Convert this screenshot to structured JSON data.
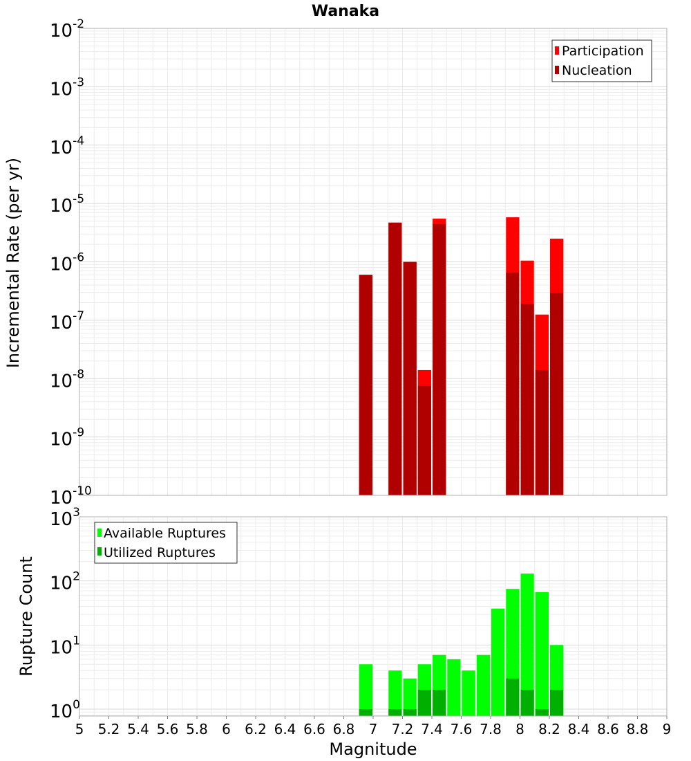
{
  "chart_data": [
    {
      "type": "bar",
      "title": "Wanaka",
      "ylabel": "Incremental Rate (per yr)",
      "xlim": [
        5,
        9
      ],
      "ylim": [
        1e-10,
        0.01
      ],
      "yscale": "log",
      "bin_width": 0.1,
      "grid": true,
      "legend_position": "top-right",
      "ytick_labels": [
        {
          "base": "10",
          "exp": "-10",
          "value": 1e-10
        },
        {
          "base": "10",
          "exp": "-9",
          "value": 1e-09
        },
        {
          "base": "10",
          "exp": "-8",
          "value": 1e-08
        },
        {
          "base": "10",
          "exp": "-7",
          "value": 1e-07
        },
        {
          "base": "10",
          "exp": "-6",
          "value": 1e-06
        },
        {
          "base": "10",
          "exp": "-5",
          "value": 1e-05
        },
        {
          "base": "10",
          "exp": "-4",
          "value": 0.0001
        },
        {
          "base": "10",
          "exp": "-3",
          "value": 0.001
        },
        {
          "base": "10",
          "exp": "-2",
          "value": 0.01
        }
      ],
      "x": [
        6.95,
        7.15,
        7.25,
        7.35,
        7.45,
        7.95,
        8.05,
        8.15,
        8.25
      ],
      "series": [
        {
          "name": "Participation",
          "color": "#ff0000",
          "values": [
            6e-07,
            4.7e-06,
            1e-06,
            1.4e-08,
            5.5e-06,
            5.8e-06,
            1.05e-06,
            1.25e-07,
            2.5e-06
          ]
        },
        {
          "name": "Nucleation",
          "color": "#b00000",
          "values": [
            6e-07,
            4.7e-06,
            1e-06,
            7.5e-09,
            4.4e-06,
            6.5e-07,
            1.9e-07,
            1.4e-08,
            2.9e-07
          ]
        }
      ]
    },
    {
      "type": "bar",
      "ylabel": "Rupture Count",
      "xlabel": "Magnitude",
      "xlim": [
        5,
        9
      ],
      "ylim": [
        0.78,
        1000
      ],
      "yscale": "log",
      "bin_width": 0.1,
      "grid": true,
      "legend_position": "top-left",
      "ytick_labels": [
        {
          "base": "10",
          "exp": "0",
          "value": 1
        },
        {
          "base": "10",
          "exp": "1",
          "value": 10
        },
        {
          "base": "10",
          "exp": "2",
          "value": 100
        },
        {
          "base": "10",
          "exp": "3",
          "value": 1000
        }
      ],
      "xtick_labels": [
        "5",
        "5.2",
        "5.4",
        "5.6",
        "5.8",
        "6",
        "6.2",
        "6.4",
        "6.6",
        "6.8",
        "7",
        "7.2",
        "7.4",
        "7.6",
        "7.8",
        "8",
        "8.2",
        "8.4",
        "8.6",
        "8.8",
        "9"
      ],
      "xtick_values": [
        5,
        5.2,
        5.4,
        5.6,
        5.8,
        6,
        6.2,
        6.4,
        6.6,
        6.8,
        7,
        7.2,
        7.4,
        7.6,
        7.8,
        8,
        8.2,
        8.4,
        8.6,
        8.8,
        9
      ],
      "x": [
        6.95,
        7.15,
        7.25,
        7.35,
        7.45,
        7.55,
        7.65,
        7.75,
        7.85,
        7.95,
        8.05,
        8.15,
        8.25
      ],
      "series": [
        {
          "name": "Available Ruptures",
          "color": "#00ff00",
          "values": [
            5,
            4,
            3,
            5,
            7,
            6,
            4,
            7,
            37,
            75,
            130,
            67,
            10
          ]
        },
        {
          "name": "Utilized Ruptures",
          "color": "#00b000",
          "values": [
            1,
            1,
            1,
            2,
            2,
            null,
            null,
            null,
            null,
            3,
            2,
            1,
            2
          ]
        }
      ]
    }
  ]
}
